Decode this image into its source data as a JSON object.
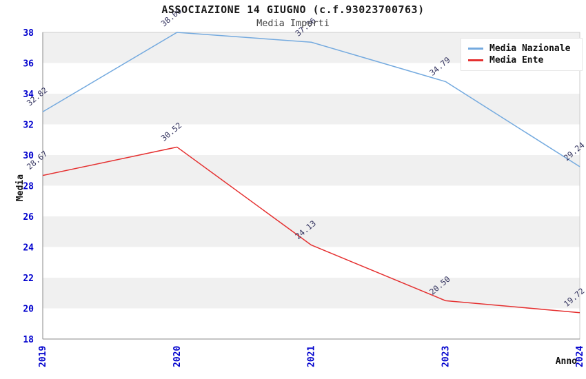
{
  "chart_data": {
    "type": "line",
    "title": "ASSOCIAZIONE 14 GIUGNO (c.f.93023700763)",
    "subtitle": "Media Importi",
    "categories": [
      "2019",
      "2020",
      "2021",
      "2023",
      "2024"
    ],
    "series": [
      {
        "name": "Media Nazionale",
        "color": "#74AADF",
        "values": [
          32.82,
          38.0,
          37.36,
          34.79,
          29.24
        ]
      },
      {
        "name": "Media Ente",
        "color": "#E53030",
        "values": [
          28.67,
          30.52,
          24.13,
          20.5,
          19.72
        ]
      }
    ],
    "xlabel": "Anno",
    "ylabel": "Media",
    "ylim": [
      18,
      38
    ],
    "ytick_step": 2,
    "legend_position": "top-right",
    "grid": "horizontal-alternating-bands",
    "band_colors": [
      "#f0f0f0",
      "#ffffff"
    ],
    "tick_label_color": "#0000CD",
    "data_label_color": "#32325E",
    "data_label_format": "2-decimals",
    "show_point_labels": true
  }
}
